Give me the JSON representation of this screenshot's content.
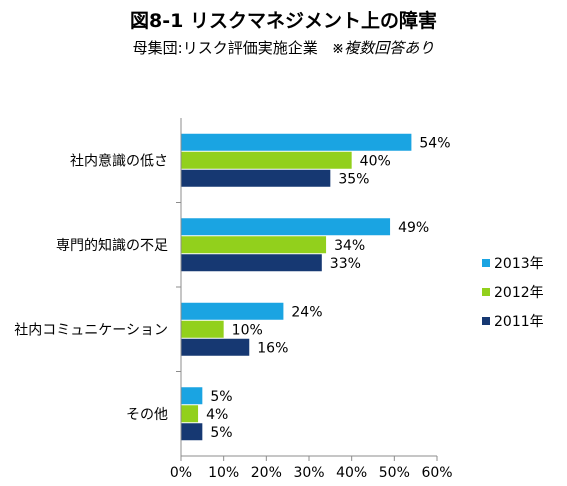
{
  "title": "図8-1 リスクマネジメント上の障害",
  "subtitle": {
    "main": "母集団:リスク評価実施企業",
    "note": "※複数回答あり"
  },
  "chart_data": {
    "type": "bar",
    "orientation": "horizontal",
    "categories": [
      "社内意識の低さ",
      "専門的知識の不足",
      "社内コミュニケーション",
      "その他"
    ],
    "series": [
      {
        "name": "2013年",
        "values": [
          54,
          49,
          24,
          5
        ],
        "color": "#1aa4e2"
      },
      {
        "name": "2012年",
        "values": [
          40,
          34,
          10,
          4
        ],
        "color": "#92d01c"
      },
      {
        "name": "2011年",
        "values": [
          35,
          33,
          16,
          5
        ],
        "color": "#163872"
      }
    ],
    "value_suffix": "%",
    "xlim": [
      0,
      60
    ],
    "xticks": [
      "0%",
      "10%",
      "20%",
      "30%",
      "40%",
      "50%",
      "60%"
    ],
    "xlabel": "",
    "ylabel": "",
    "grid": false,
    "legend": "right"
  }
}
